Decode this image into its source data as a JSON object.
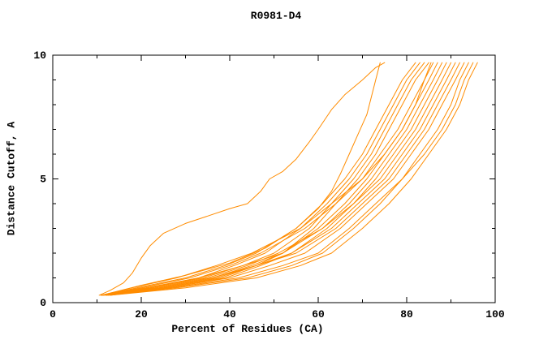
{
  "chart_data": {
    "type": "line",
    "title": "R0981-D4",
    "xlabel": "Percent of Residues (CA)",
    "ylabel": "Distance Cutoff, A",
    "xlim": [
      0,
      100
    ],
    "ylim": [
      0,
      10
    ],
    "xticks_major": [
      0,
      20,
      40,
      60,
      80,
      100
    ],
    "xticks_minor": [
      10,
      30,
      50,
      70,
      90
    ],
    "yticks_major": [
      0,
      5,
      10
    ],
    "yticks_minor": [
      1,
      2,
      3,
      4,
      6,
      7,
      8,
      9
    ],
    "line_color": "#ff8c00",
    "grid": false,
    "legend": "none",
    "series": [
      {
        "points": [
          [
            10.5,
            0.3
          ],
          [
            13,
            0.5
          ],
          [
            16,
            0.8
          ],
          [
            18,
            1.2
          ],
          [
            20,
            1.8
          ],
          [
            22,
            2.3
          ],
          [
            25,
            2.8
          ],
          [
            30,
            3.2
          ],
          [
            35,
            3.5
          ],
          [
            40,
            3.8
          ],
          [
            44,
            4.0
          ],
          [
            47,
            4.5
          ],
          [
            49,
            5.0
          ],
          [
            52,
            5.3
          ],
          [
            55,
            5.8
          ],
          [
            58,
            6.5
          ],
          [
            60,
            7.0
          ],
          [
            63,
            7.8
          ],
          [
            66,
            8.4
          ],
          [
            70,
            9.0
          ],
          [
            73,
            9.5
          ],
          [
            75,
            9.7
          ]
        ]
      },
      {
        "points": [
          [
            11,
            0.3
          ],
          [
            20,
            0.7
          ],
          [
            30,
            1.1
          ],
          [
            40,
            1.6
          ],
          [
            48,
            2.2
          ],
          [
            55,
            3.0
          ],
          [
            60,
            3.8
          ],
          [
            63,
            4.5
          ],
          [
            65,
            5.2
          ],
          [
            67,
            6.0
          ],
          [
            69,
            6.8
          ],
          [
            71,
            7.6
          ],
          [
            72,
            8.3
          ],
          [
            73,
            9.0
          ],
          [
            74,
            9.7
          ]
        ]
      },
      {
        "points": [
          [
            11,
            0.3
          ],
          [
            19,
            0.6
          ],
          [
            30,
            1.0
          ],
          [
            39,
            1.5
          ],
          [
            46,
            2.0
          ],
          [
            55,
            3.0
          ],
          [
            61,
            4.0
          ],
          [
            66,
            5.0
          ],
          [
            70,
            6.0
          ],
          [
            73,
            7.0
          ],
          [
            76,
            8.0
          ],
          [
            79,
            9.0
          ],
          [
            82,
            9.7
          ]
        ]
      },
      {
        "points": [
          [
            10.8,
            0.3
          ],
          [
            21,
            0.6
          ],
          [
            33,
            1.0
          ],
          [
            41,
            1.5
          ],
          [
            48,
            2.0
          ],
          [
            56,
            3.0
          ],
          [
            62,
            4.0
          ],
          [
            67,
            5.0
          ],
          [
            71,
            6.0
          ],
          [
            74,
            7.0
          ],
          [
            77,
            8.0
          ],
          [
            80,
            9.0
          ],
          [
            83,
            9.7
          ]
        ]
      },
      {
        "points": [
          [
            11.5,
            0.3
          ],
          [
            22,
            0.6
          ],
          [
            34,
            1.0
          ],
          [
            43,
            1.5
          ],
          [
            50,
            2.0
          ],
          [
            58,
            3.0
          ],
          [
            63,
            4.0
          ],
          [
            68,
            5.0
          ],
          [
            72,
            6.0
          ],
          [
            75,
            7.0
          ],
          [
            78,
            8.0
          ],
          [
            81,
            9.0
          ],
          [
            84,
            9.7
          ]
        ]
      },
      {
        "points": [
          [
            12,
            0.3
          ],
          [
            25,
            0.6
          ],
          [
            38,
            1.0
          ],
          [
            46,
            1.5
          ],
          [
            52,
            2.0
          ],
          [
            59,
            3.0
          ],
          [
            64,
            4.0
          ],
          [
            69,
            5.0
          ],
          [
            73,
            6.0
          ],
          [
            76,
            7.0
          ],
          [
            79,
            8.0
          ],
          [
            82,
            9.0
          ],
          [
            85,
            9.7
          ]
        ]
      },
      {
        "points": [
          [
            11,
            0.3
          ],
          [
            20,
            0.6
          ],
          [
            31,
            1.0
          ],
          [
            40,
            1.5
          ],
          [
            47,
            2.0
          ],
          [
            57,
            3.0
          ],
          [
            64,
            4.0
          ],
          [
            70,
            5.0
          ],
          [
            74,
            6.0
          ],
          [
            78,
            7.0
          ],
          [
            81,
            8.0
          ],
          [
            84,
            9.0
          ],
          [
            86,
            9.7
          ]
        ]
      },
      {
        "points": [
          [
            12,
            0.3
          ],
          [
            24,
            0.6
          ],
          [
            36,
            1.0
          ],
          [
            45,
            1.5
          ],
          [
            52,
            2.0
          ],
          [
            60,
            3.0
          ],
          [
            66,
            4.0
          ],
          [
            71,
            5.0
          ],
          [
            75,
            6.0
          ],
          [
            79,
            7.0
          ],
          [
            82,
            8.0
          ],
          [
            85,
            9.0
          ],
          [
            87,
            9.7
          ]
        ]
      },
      {
        "points": [
          [
            11.2,
            0.3
          ],
          [
            23,
            0.6
          ],
          [
            35,
            1.0
          ],
          [
            44,
            1.5
          ],
          [
            51,
            2.0
          ],
          [
            61,
            3.0
          ],
          [
            67,
            4.0
          ],
          [
            72,
            5.0
          ],
          [
            76,
            6.0
          ],
          [
            80,
            7.0
          ],
          [
            83,
            8.0
          ],
          [
            86,
            9.0
          ],
          [
            88,
            9.7
          ]
        ]
      },
      {
        "points": [
          [
            12.5,
            0.3
          ],
          [
            26,
            0.6
          ],
          [
            39,
            1.0
          ],
          [
            47,
            1.5
          ],
          [
            54,
            2.0
          ],
          [
            62,
            3.0
          ],
          [
            68,
            4.0
          ],
          [
            73,
            5.0
          ],
          [
            77,
            6.0
          ],
          [
            81,
            7.0
          ],
          [
            84,
            8.0
          ],
          [
            87,
            9.0
          ],
          [
            89,
            9.7
          ]
        ]
      },
      {
        "points": [
          [
            11,
            0.3
          ],
          [
            22,
            0.6
          ],
          [
            33,
            1.0
          ],
          [
            43,
            1.5
          ],
          [
            52,
            2.0
          ],
          [
            61,
            3.0
          ],
          [
            68,
            4.0
          ],
          [
            74,
            5.0
          ],
          [
            78,
            6.0
          ],
          [
            82,
            7.0
          ],
          [
            85,
            8.0
          ],
          [
            88,
            9.0
          ],
          [
            90,
            9.7
          ]
        ]
      },
      {
        "points": [
          [
            12,
            0.3
          ],
          [
            25,
            0.6
          ],
          [
            37,
            1.0
          ],
          [
            46,
            1.5
          ],
          [
            54,
            2.0
          ],
          [
            63,
            3.0
          ],
          [
            69,
            4.0
          ],
          [
            75,
            5.0
          ],
          [
            79,
            6.0
          ],
          [
            83,
            7.0
          ],
          [
            86,
            8.0
          ],
          [
            89,
            9.0
          ],
          [
            91,
            9.7
          ]
        ]
      },
      {
        "points": [
          [
            11.5,
            0.3
          ],
          [
            24,
            0.6
          ],
          [
            36,
            1.0
          ],
          [
            46,
            1.5
          ],
          [
            55,
            2.0
          ],
          [
            64,
            3.0
          ],
          [
            70,
            4.0
          ],
          [
            76,
            5.0
          ],
          [
            80,
            6.0
          ],
          [
            84,
            7.0
          ],
          [
            87,
            8.0
          ],
          [
            90,
            9.0
          ],
          [
            92,
            9.7
          ]
        ]
      },
      {
        "points": [
          [
            12,
            0.3
          ],
          [
            26,
            0.6
          ],
          [
            40,
            1.0
          ],
          [
            49,
            1.5
          ],
          [
            57,
            2.0
          ],
          [
            65,
            3.0
          ],
          [
            71,
            4.0
          ],
          [
            77,
            5.0
          ],
          [
            81,
            6.0
          ],
          [
            85,
            7.0
          ],
          [
            88,
            8.0
          ],
          [
            91,
            9.0
          ],
          [
            93,
            9.7
          ]
        ]
      },
      {
        "points": [
          [
            13,
            0.3
          ],
          [
            28,
            0.6
          ],
          [
            44,
            1.0
          ],
          [
            54,
            1.5
          ],
          [
            61,
            2.0
          ],
          [
            68,
            3.0
          ],
          [
            74,
            4.0
          ],
          [
            79,
            5.0
          ],
          [
            83,
            6.0
          ],
          [
            87,
            7.0
          ],
          [
            90,
            8.0
          ],
          [
            92,
            9.0
          ],
          [
            94,
            9.7
          ]
        ]
      },
      {
        "points": [
          [
            12.5,
            0.3
          ],
          [
            27,
            0.6
          ],
          [
            42,
            1.0
          ],
          [
            52,
            1.5
          ],
          [
            60,
            2.0
          ],
          [
            67,
            3.0
          ],
          [
            73,
            4.0
          ],
          [
            79,
            5.0
          ],
          [
            84,
            6.0
          ],
          [
            88,
            7.0
          ],
          [
            91,
            8.0
          ],
          [
            93,
            9.0
          ],
          [
            95,
            9.7
          ]
        ]
      },
      {
        "points": [
          [
            13,
            0.3
          ],
          [
            30,
            0.6
          ],
          [
            46,
            1.0
          ],
          [
            56,
            1.5
          ],
          [
            63,
            2.0
          ],
          [
            70,
            3.0
          ],
          [
            76,
            4.0
          ],
          [
            81,
            5.0
          ],
          [
            85,
            6.0
          ],
          [
            89,
            7.0
          ],
          [
            92,
            8.0
          ],
          [
            94,
            9.0
          ],
          [
            96,
            9.7
          ]
        ]
      },
      {
        "points": [
          [
            11,
            0.3
          ],
          [
            18,
            0.6
          ],
          [
            28,
            1.0
          ],
          [
            37,
            1.5
          ],
          [
            45,
            2.0
          ],
          [
            56,
            3.0
          ],
          [
            63,
            4.0
          ],
          [
            70,
            5.0
          ],
          [
            75,
            6.0
          ],
          [
            79,
            7.0
          ],
          [
            82,
            8.0
          ],
          [
            84,
            9.0
          ],
          [
            85.5,
            9.7
          ]
        ]
      }
    ]
  }
}
